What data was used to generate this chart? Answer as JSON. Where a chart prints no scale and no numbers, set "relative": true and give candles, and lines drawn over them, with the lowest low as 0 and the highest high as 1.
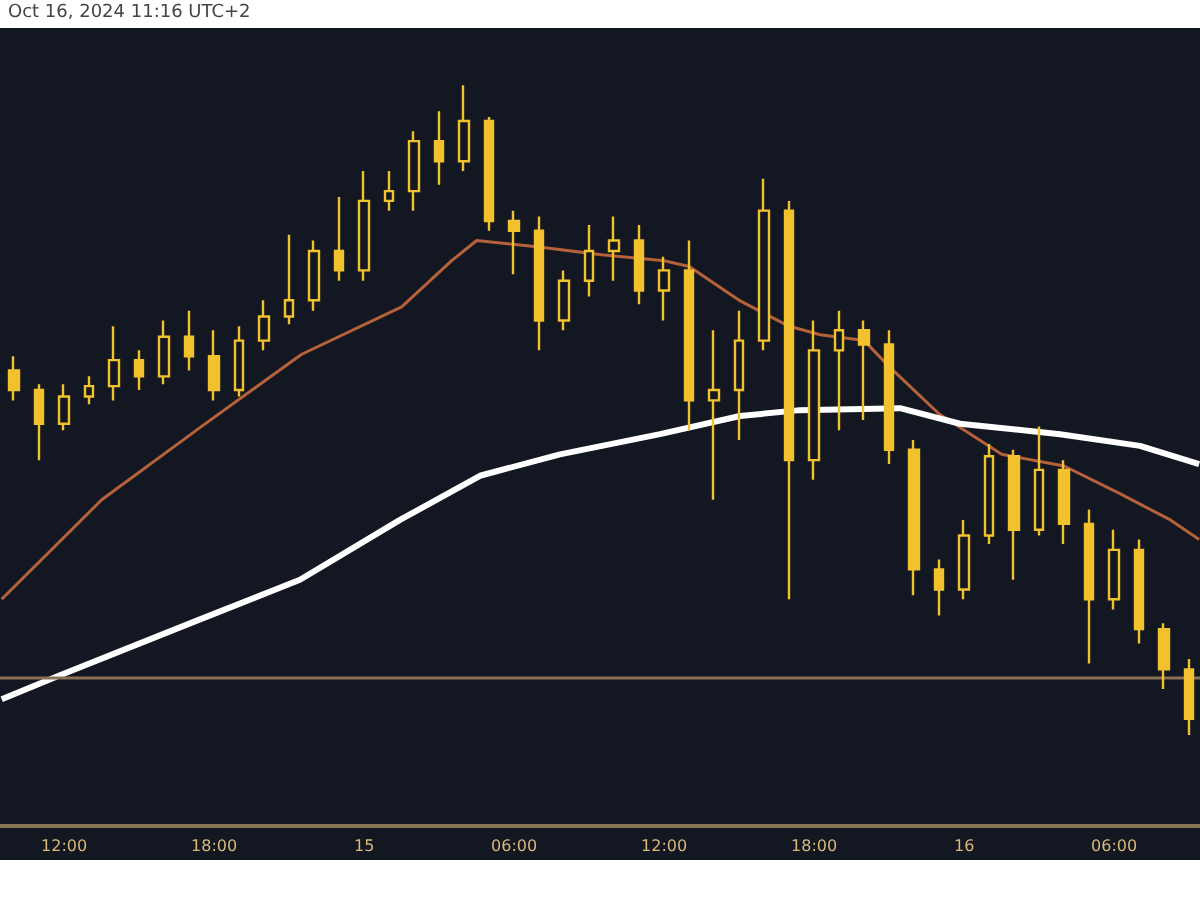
{
  "chart_data": {
    "type": "candlestick",
    "relative": true,
    "annotations": [
      "Oct 16, 2024 11:16 UTC+2"
    ],
    "xlim": [
      "2024-10-14T09:26",
      "2024-10-16T09:26"
    ],
    "xticks": [
      {
        "value": "2024-10-14T12:00",
        "label": "12:00"
      },
      {
        "value": "2024-10-14T18:00",
        "label": "18:00"
      },
      {
        "value": "2024-10-15T00:00",
        "label": "15"
      },
      {
        "value": "2024-10-15T06:00",
        "label": "06:00"
      },
      {
        "value": "2024-10-15T12:00",
        "label": "12:00"
      },
      {
        "value": "2024-10-15T18:00",
        "label": "18:00"
      },
      {
        "value": "2024-10-16T00:00",
        "label": "16"
      },
      {
        "value": "2024-10-16T06:00",
        "label": "06:00"
      }
    ],
    "grid": false,
    "ref_lines": [
      {
        "axis": "y",
        "value": 0.092,
        "color": "#8a7256"
      }
    ],
    "series": [
      {
        "type": "candlestick",
        "color": "#f2c12e",
        "x": [
          "2024-10-14T10:00",
          "2024-10-14T11:00",
          "2024-10-14T12:00",
          "2024-10-14T13:00",
          "2024-10-14T14:00",
          "2024-10-14T15:00",
          "2024-10-14T16:00",
          "2024-10-14T17:00",
          "2024-10-14T18:00",
          "2024-10-14T19:00",
          "2024-10-14T20:00",
          "2024-10-14T21:00",
          "2024-10-14T22:00",
          "2024-10-14T23:00",
          "2024-10-15T00:00",
          "2024-10-15T01:00",
          "2024-10-15T02:00",
          "2024-10-15T03:00",
          "2024-10-15T04:00",
          "2024-10-15T05:00",
          "2024-10-15T06:00",
          "2024-10-15T07:00",
          "2024-10-15T08:00",
          "2024-10-15T09:00",
          "2024-10-15T10:00",
          "2024-10-15T11:00",
          "2024-10-15T12:00",
          "2024-10-15T13:00",
          "2024-10-15T14:00",
          "2024-10-15T15:00",
          "2024-10-15T16:00",
          "2024-10-15T17:00",
          "2024-10-15T18:00",
          "2024-10-15T19:00",
          "2024-10-15T20:00",
          "2024-10-15T21:00",
          "2024-10-15T22:00",
          "2024-10-15T23:00",
          "2024-10-16T00:00",
          "2024-10-16T01:00",
          "2024-10-16T02:00",
          "2024-10-16T03:00",
          "2024-10-16T04:00",
          "2024-10-16T05:00",
          "2024-10-16T06:00",
          "2024-10-16T07:00",
          "2024-10-16T08:00",
          "2024-10-16T09:00"
        ],
        "ohlc": [
          [
            0.561,
            0.583,
            0.515,
            0.531
          ],
          [
            0.531,
            0.54,
            0.423,
            0.479
          ],
          [
            0.479,
            0.54,
            0.469,
            0.521
          ],
          [
            0.521,
            0.552,
            0.509,
            0.537
          ],
          [
            0.537,
            0.629,
            0.515,
            0.577
          ],
          [
            0.577,
            0.592,
            0.531,
            0.552
          ],
          [
            0.552,
            0.638,
            0.54,
            0.613
          ],
          [
            0.613,
            0.653,
            0.561,
            0.583
          ],
          [
            0.583,
            0.623,
            0.515,
            0.531
          ],
          [
            0.531,
            0.629,
            0.521,
            0.607
          ],
          [
            0.607,
            0.669,
            0.592,
            0.644
          ],
          [
            0.644,
            0.77,
            0.632,
            0.669
          ],
          [
            0.669,
            0.761,
            0.653,
            0.745
          ],
          [
            0.745,
            0.828,
            0.699,
            0.715
          ],
          [
            0.715,
            0.868,
            0.699,
            0.822
          ],
          [
            0.822,
            0.868,
            0.807,
            0.837
          ],
          [
            0.837,
            0.929,
            0.807,
            0.914
          ],
          [
            0.914,
            0.96,
            0.847,
            0.883
          ],
          [
            0.883,
            1,
            0.868,
            0.945
          ],
          [
            0.945,
            0.951,
            0.776,
            0.791
          ],
          [
            0.791,
            0.807,
            0.709,
            0.776
          ],
          [
            0.776,
            0.798,
            0.592,
            0.638
          ],
          [
            0.638,
            0.715,
            0.623,
            0.699
          ],
          [
            0.699,
            0.785,
            0.675,
            0.745
          ],
          [
            0.745,
            0.798,
            0.699,
            0.761
          ],
          [
            0.761,
            0.785,
            0.663,
            0.684
          ],
          [
            0.684,
            0.736,
            0.638,
            0.715
          ],
          [
            0.715,
            0.761,
            0.469,
            0.515
          ],
          [
            0.515,
            0.623,
            0.362,
            0.531
          ],
          [
            0.531,
            0.653,
            0.454,
            0.607
          ],
          [
            0.607,
            0.856,
            0.592,
            0.807
          ],
          [
            0.807,
            0.822,
            0.209,
            0.423
          ],
          [
            0.423,
            0.638,
            0.393,
            0.592
          ],
          [
            0.592,
            0.653,
            0.469,
            0.623
          ],
          [
            0.623,
            0.638,
            0.485,
            0.601
          ],
          [
            0.601,
            0.623,
            0.417,
            0.439
          ],
          [
            0.439,
            0.454,
            0.215,
            0.255
          ],
          [
            0.255,
            0.27,
            0.184,
            0.224
          ],
          [
            0.224,
            0.331,
            0.209,
            0.307
          ],
          [
            0.307,
            0.448,
            0.294,
            0.429
          ],
          [
            0.429,
            0.439,
            0.239,
            0.316
          ],
          [
            0.316,
            0.475,
            0.307,
            0.408
          ],
          [
            0.408,
            0.423,
            0.294,
            0.325
          ],
          [
            0.325,
            0.347,
            0.11,
            0.209
          ],
          [
            0.209,
            0.316,
            0.193,
            0.285
          ],
          [
            0.285,
            0.301,
            0.141,
            0.163
          ],
          [
            0.163,
            0.172,
            0.071,
            0.101
          ],
          [
            0.101,
            0.117,
            0,
            0.025
          ]
        ]
      },
      {
        "type": "line",
        "color": "#b5613a",
        "x": [
          "2024-10-14T09:30",
          "2024-10-14T13:30",
          "2024-10-14T17:30",
          "2024-10-14T21:30",
          "2024-10-15T01:30",
          "2024-10-15T03:30",
          "2024-10-15T04:30",
          "2024-10-15T07:00",
          "2024-10-15T09:30",
          "2024-10-15T12:00",
          "2024-10-15T13:00",
          "2024-10-15T15:00",
          "2024-10-15T17:00",
          "2024-10-15T18:15",
          "2024-10-15T20:00",
          "2024-10-15T21:00",
          "2024-10-15T23:00",
          "2024-10-16T01:30",
          "2024-10-16T04:00",
          "2024-10-16T06:15",
          "2024-10-16T08:15",
          "2024-10-16T09:24"
        ],
        "values": [
          0.209,
          0.362,
          0.475,
          0.586,
          0.659,
          0.73,
          0.761,
          0.751,
          0.739,
          0.73,
          0.721,
          0.669,
          0.629,
          0.616,
          0.607,
          0.567,
          0.494,
          0.432,
          0.414,
          0.371,
          0.331,
          0.301
        ]
      },
      {
        "type": "line",
        "color": "#ffffff",
        "x": [
          "2024-10-14T09:30",
          "2024-10-14T11:50",
          "2024-10-14T17:26",
          "2024-10-14T21:26",
          "2024-10-15T01:26",
          "2024-10-15T04:38",
          "2024-10-15T07:50",
          "2024-10-15T11:50",
          "2024-10-15T15:02",
          "2024-10-15T17:26",
          "2024-10-15T21:26",
          "2024-10-15T23:50",
          "2024-10-16T03:50",
          "2024-10-16T07:02",
          "2024-10-16T09:24"
        ],
        "values": [
          0.055,
          0.092,
          0.178,
          0.239,
          0.331,
          0.399,
          0.432,
          0.463,
          0.491,
          0.5,
          0.503,
          0.479,
          0.463,
          0.445,
          0.417
        ]
      }
    ]
  }
}
